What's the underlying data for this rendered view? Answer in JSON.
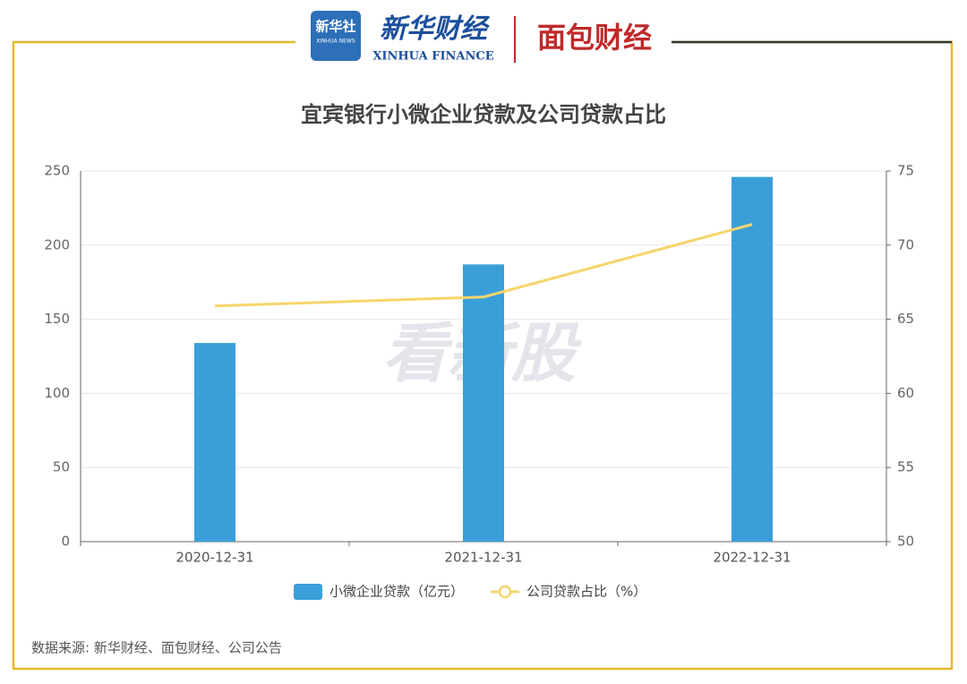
{
  "header": {
    "logo": "新华社",
    "logo_sub": "XINHUA NEWS",
    "brand": "新华财经",
    "brand_sub": "XINHUA FINANCE",
    "partner": "面包财经"
  },
  "watermark": "看新股",
  "source": "数据来源: 新华财经、面包财经、公司公告",
  "chart_data": {
    "type": "bar",
    "title": "宜宾银行小微企业贷款及公司贷款占比",
    "categories": [
      "2020-12-31",
      "2021-12-31",
      "2022-12-31"
    ],
    "series": [
      {
        "name": "小微企业贷款（亿元）",
        "type": "bar",
        "color": "#3a9fd8",
        "values": [
          134,
          187,
          246
        ]
      },
      {
        "name": "公司贷款占比（%）",
        "type": "line",
        "axis": "y2",
        "color": "#f5d56b",
        "values": [
          65.9,
          66.5,
          71.4
        ]
      }
    ],
    "ylim": [
      0,
      250
    ],
    "yticks": [
      0,
      50,
      100,
      150,
      200,
      250
    ],
    "y2lim": [
      50,
      75
    ],
    "y2ticks": [
      50,
      55,
      60,
      65,
      70,
      75
    ],
    "grid": true,
    "legend": "bottom"
  }
}
